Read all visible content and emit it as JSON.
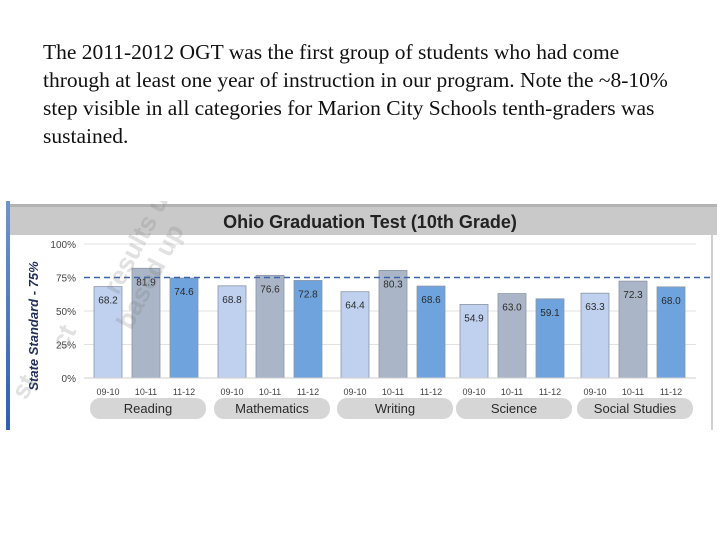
{
  "caption": "The 2011-2012 OGT was the first group of students who had come through at least one year of instruction in our program. Note the ~8-10% step visible in all categories for Marion City Schools tenth-graders was sustained.",
  "watermark": [
    "results ur",
    "based up",
    "ct",
    "st"
  ],
  "chart_data": {
    "type": "bar",
    "title": "Ohio Graduation Test (10th Grade)",
    "ylabel": "State Standard - 75%",
    "ylim": [
      0,
      100
    ],
    "yticks": [
      "100%",
      "75%",
      "50%",
      "25%",
      "0%"
    ],
    "reference_line": 75,
    "year_labels": [
      "09-10",
      "10-11",
      "11-12"
    ],
    "categories": [
      "Reading",
      "Mathematics",
      "Writing",
      "Science",
      "Social Studies"
    ],
    "series": [
      {
        "values": [
          68.2,
          68.8,
          64.4,
          54.9,
          63.3
        ],
        "labels": [
          "68.2",
          "68.8",
          "64.4",
          "54.9",
          "63.3"
        ],
        "color": "#bfd1ef"
      },
      {
        "values": [
          81.9,
          76.6,
          80.3,
          63.0,
          72.3
        ],
        "labels": [
          "81.9",
          "76.6",
          "80.3",
          "63.0",
          "72.3"
        ],
        "color": "#aab6c7"
      },
      {
        "values": [
          74.6,
          72.8,
          68.6,
          59.1,
          68.0
        ],
        "labels": [
          "74.6",
          "72.8",
          "68.6",
          "59.1",
          "68.0"
        ],
        "color": "#6ea3dd"
      }
    ],
    "grid": true,
    "colors": {
      "reference_line": "#3b64a8",
      "label_pill": "#d6d6d6",
      "title_band": "#c9c9c9"
    }
  }
}
